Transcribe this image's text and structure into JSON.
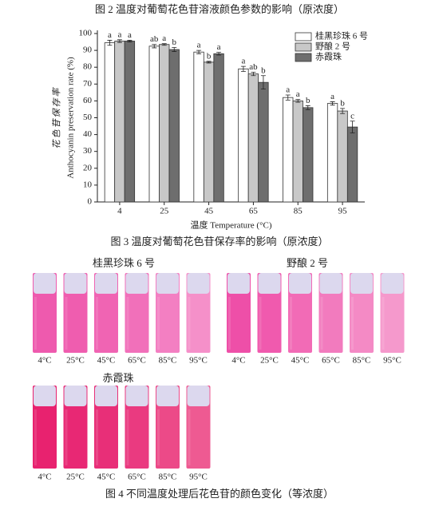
{
  "header_caption": "图 2 温度对葡萄花色苷溶液颜色参数的影响（原浓度）",
  "chart_data": {
    "type": "bar",
    "categories": [
      "4",
      "25",
      "45",
      "65",
      "85",
      "95"
    ],
    "xlabel": "温度 Temperature (°C)",
    "ylabel_zh": "花色苷保存率",
    "ylabel": "Anthocyanin preservation rate (%)",
    "ylim": [
      0,
      100
    ],
    "yticks": [
      0,
      10,
      20,
      30,
      40,
      50,
      60,
      70,
      80,
      90,
      100
    ],
    "legend": "upper right",
    "series": [
      {
        "name": "桂黑珍珠 6 号",
        "color": "#ffffff",
        "values": [
          94.5,
          92.5,
          89,
          79,
          62,
          58.5
        ],
        "errors": [
          1.5,
          1,
          1,
          1.5,
          1.5,
          1
        ],
        "letters": [
          "a",
          "ab",
          "a",
          "a",
          "a",
          "a"
        ]
      },
      {
        "name": "野酿 2 号",
        "color": "#c8c8c8",
        "values": [
          95.5,
          93.5,
          83,
          76,
          60,
          54
        ],
        "errors": [
          0.8,
          0.5,
          0.5,
          1,
          0.8,
          1.5
        ],
        "letters": [
          "a",
          "a",
          "b",
          "ab",
          "a",
          "b"
        ]
      },
      {
        "name": "赤霞珠",
        "color": "#6e6e6e",
        "values": [
          95.5,
          90.5,
          88,
          71,
          56,
          44.5
        ],
        "errors": [
          0.5,
          1.2,
          0.8,
          4,
          1.2,
          3.5
        ],
        "letters": [
          "a",
          "b",
          "a",
          "b",
          "b",
          "c"
        ]
      }
    ]
  },
  "figure3_caption": "图 3 温度对葡萄花色苷保存率的影响（原浓度）",
  "tube_panels": [
    {
      "title": "桂黑珍珠 6 号",
      "labels": [
        "4°C",
        "25°C",
        "45°C",
        "65°C",
        "85°C",
        "95°C"
      ],
      "colors": [
        "#ee5aae",
        "#ef5daf",
        "#f064b3",
        "#f170ba",
        "#f37fc2",
        "#f590c9"
      ]
    },
    {
      "title": "野酿 2 号",
      "labels": [
        "4°C",
        "25°C",
        "45°C",
        "65°C",
        "85°C",
        "95°C"
      ],
      "colors": [
        "#ee4fa8",
        "#f05aae",
        "#f26bb6",
        "#f27bbe",
        "#f48ac5",
        "#f599cc"
      ]
    },
    {
      "title": "赤霞珠",
      "labels": [
        "4°C",
        "25°C",
        "45°C",
        "65°C",
        "85°C",
        "95°C"
      ],
      "colors": [
        "#e8226f",
        "#e82874",
        "#e82f78",
        "#ea3a80",
        "#ec4a88",
        "#ee5a92"
      ]
    }
  ],
  "figure4_caption": "图 4 不同温度处理后花色苷的颜色变化（等浓度）"
}
